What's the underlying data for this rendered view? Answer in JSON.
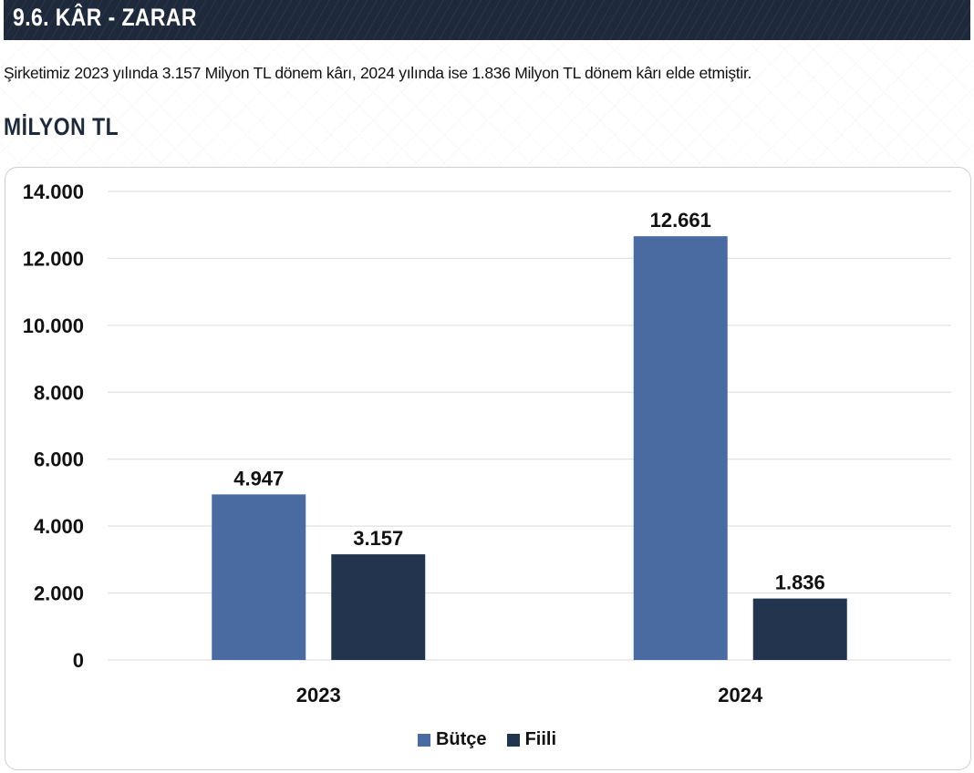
{
  "header": {
    "title": "9.6. KÂR - ZARAR"
  },
  "intro_text": "Şirketimiz 2023 yılında 3.157 Milyon TL dönem kârı, 2024 yılında ise 1.836 Milyon TL dönem kârı elde etmiştir.",
  "chart_title": "MİLYON TL",
  "colors": {
    "header_bg": "#1e2a3c",
    "butce": "#4a6aa2",
    "fiili": "#23344f",
    "grid": "#d9d9d9"
  },
  "chart_data": {
    "type": "bar",
    "title": "MİLYON TL",
    "categories": [
      "2023",
      "2024"
    ],
    "series": [
      {
        "name": "Bütçe",
        "values": [
          4947,
          12661
        ],
        "labels": [
          "4.947",
          "12.661"
        ],
        "color": "#4a6aa2"
      },
      {
        "name": "Fiili",
        "values": [
          3157,
          1836
        ],
        "labels": [
          "3.157",
          "1.836"
        ],
        "color": "#23344f"
      }
    ],
    "ylim": [
      0,
      14000
    ],
    "yticks": [
      0,
      2000,
      4000,
      6000,
      8000,
      10000,
      12000,
      14000
    ],
    "ytick_labels": [
      "0",
      "2.000",
      "4.000",
      "6.000",
      "8.000",
      "10.000",
      "12.000",
      "14.000"
    ],
    "xlabel": "",
    "ylabel": "",
    "grid": true,
    "legend": [
      "Bütçe",
      "Fiili"
    ],
    "legend_position": "bottom"
  }
}
